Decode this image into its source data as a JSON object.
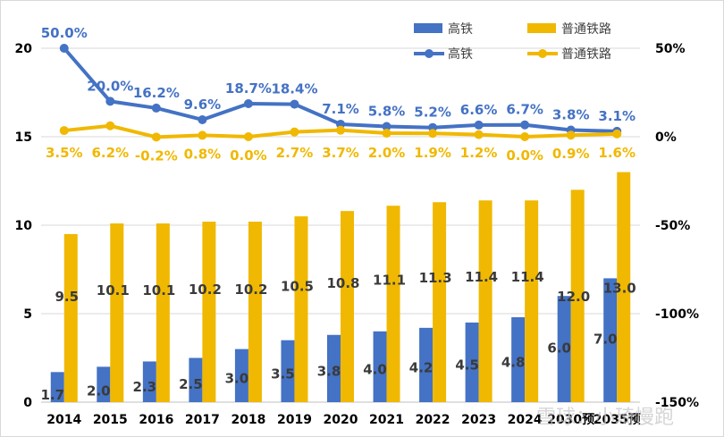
{
  "chart_data": {
    "type": "bar",
    "title": "",
    "xlabel": "",
    "ylabel": "",
    "categories": [
      "2014",
      "2015",
      "2016",
      "2017",
      "2018",
      "2019",
      "2020",
      "2021",
      "2022",
      "2023",
      "2024",
      "2030预",
      "2035预"
    ],
    "series": [
      {
        "name": "高铁",
        "kind": "bar",
        "axis": "left",
        "color": "#4472c4",
        "values": [
          1.7,
          2.0,
          2.3,
          2.5,
          3.0,
          3.5,
          3.8,
          4.0,
          4.2,
          4.5,
          4.8,
          6.0,
          7.0
        ],
        "labels": [
          "1.7",
          "2.0",
          "2.3",
          "2.5",
          "3.0",
          "3.5",
          "3.8",
          "4.0",
          "4.2",
          "4.5",
          "4.8",
          "6.0",
          "7.0"
        ]
      },
      {
        "name": "普通铁路",
        "kind": "bar",
        "axis": "left",
        "color": "#f0b800",
        "values": [
          9.5,
          10.1,
          10.1,
          10.2,
          10.2,
          10.5,
          10.8,
          11.1,
          11.3,
          11.4,
          11.4,
          12.0,
          13.0
        ],
        "labels": [
          "9.5",
          "10.1",
          "10.1",
          "10.2",
          "10.2",
          "10.5",
          "10.8",
          "11.1",
          "11.3",
          "11.4",
          "11.4",
          "12.0",
          "13.0"
        ]
      },
      {
        "name": "高铁",
        "kind": "line",
        "axis": "right",
        "color": "#4472c4",
        "values": [
          50.0,
          20.0,
          16.2,
          9.6,
          18.7,
          18.4,
          7.1,
          5.8,
          5.2,
          6.6,
          6.7,
          3.8,
          3.1
        ],
        "labels": [
          "50.0%",
          "20.0%",
          "16.2%",
          "9.6%",
          "18.7%",
          "18.4%",
          "7.1%",
          "5.8%",
          "5.2%",
          "6.6%",
          "6.7%",
          "3.8%",
          "3.1%"
        ]
      },
      {
        "name": "普通铁路",
        "kind": "line",
        "axis": "right",
        "color": "#f0b800",
        "values": [
          3.5,
          6.2,
          -0.2,
          0.8,
          0.0,
          2.7,
          3.7,
          2.0,
          1.9,
          1.2,
          0.0,
          0.9,
          1.6
        ],
        "labels": [
          "3.5%",
          "6.2%",
          "-0.2%",
          "0.8%",
          "0.0%",
          "2.7%",
          "3.7%",
          "2.0%",
          "1.9%",
          "1.2%",
          "0.0%",
          "0.9%",
          "1.6%"
        ]
      }
    ],
    "left_axis": {
      "range": [
        0,
        20
      ],
      "ticks": [
        "0",
        "5",
        "10",
        "15",
        "20"
      ],
      "tick_values": [
        0,
        5,
        10,
        15,
        20
      ]
    },
    "right_axis": {
      "range": [
        -150,
        50
      ],
      "ticks": [
        "-150%",
        "-100%",
        "-50%",
        "0%",
        "50%"
      ],
      "tick_values": [
        -150,
        -100,
        -50,
        0,
        50
      ]
    },
    "grid": true,
    "legend": {
      "placement": "top-right",
      "entries": [
        {
          "label": "高铁",
          "type": "bar",
          "color": "#4472c4"
        },
        {
          "label": "普通铁路",
          "type": "bar",
          "color": "#f0b800"
        },
        {
          "label": "高铁",
          "type": "line",
          "color": "#4472c4"
        },
        {
          "label": "普通铁路",
          "type": "line",
          "color": "#f0b800"
        }
      ]
    }
  },
  "watermark": "雪球：小琦慢跑"
}
